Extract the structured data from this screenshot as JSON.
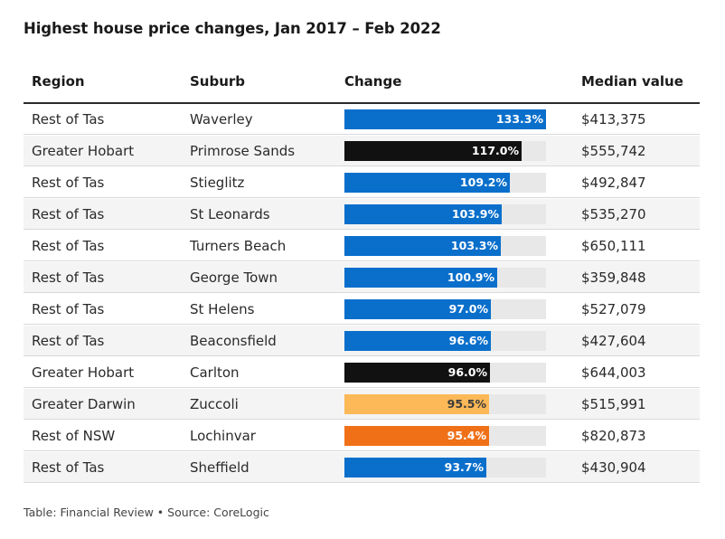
{
  "title": "Highest house price changes, Jan 2017 – Feb 2022",
  "footer": "Table: Financial Review • Source: CoreLogic",
  "colors": {
    "Rest of Tas": "#0a6fcb",
    "Greater Hobart": "#111111",
    "Greater Darwin": "#fdb957",
    "Rest of NSW": "#f07018",
    "track": "#e8e8e8"
  },
  "chart_data": {
    "type": "table",
    "columns": [
      "Region",
      "Suburb",
      "Change",
      "Median value"
    ],
    "change_max": 133.3,
    "rows": [
      {
        "region": "Rest of Tas",
        "suburb": "Waverley",
        "change": 133.3,
        "change_label": "133.3%",
        "median": "$413,375"
      },
      {
        "region": "Greater Hobart",
        "suburb": "Primrose Sands",
        "change": 117.0,
        "change_label": "117.0%",
        "median": "$555,742"
      },
      {
        "region": "Rest of Tas",
        "suburb": "Stieglitz",
        "change": 109.2,
        "change_label": "109.2%",
        "median": "$492,847"
      },
      {
        "region": "Rest of Tas",
        "suburb": "St Leonards",
        "change": 103.9,
        "change_label": "103.9%",
        "median": "$535,270"
      },
      {
        "region": "Rest of Tas",
        "suburb": "Turners Beach",
        "change": 103.3,
        "change_label": "103.3%",
        "median": "$650,111"
      },
      {
        "region": "Rest of Tas",
        "suburb": "George Town",
        "change": 100.9,
        "change_label": "100.9%",
        "median": "$359,848"
      },
      {
        "region": "Rest of Tas",
        "suburb": "St Helens",
        "change": 97.0,
        "change_label": "97.0%",
        "median": "$527,079"
      },
      {
        "region": "Rest of Tas",
        "suburb": "Beaconsfield",
        "change": 96.6,
        "change_label": "96.6%",
        "median": "$427,604"
      },
      {
        "region": "Greater Hobart",
        "suburb": "Carlton",
        "change": 96.0,
        "change_label": "96.0%",
        "median": "$644,003"
      },
      {
        "region": "Greater Darwin",
        "suburb": "Zuccoli",
        "change": 95.5,
        "change_label": "95.5%",
        "median": "$515,991"
      },
      {
        "region": "Rest of NSW",
        "suburb": "Lochinvar",
        "change": 95.4,
        "change_label": "95.4%",
        "median": "$820,873"
      },
      {
        "region": "Rest of Tas",
        "suburb": "Sheffield",
        "change": 93.7,
        "change_label": "93.7%",
        "median": "$430,904"
      }
    ]
  }
}
